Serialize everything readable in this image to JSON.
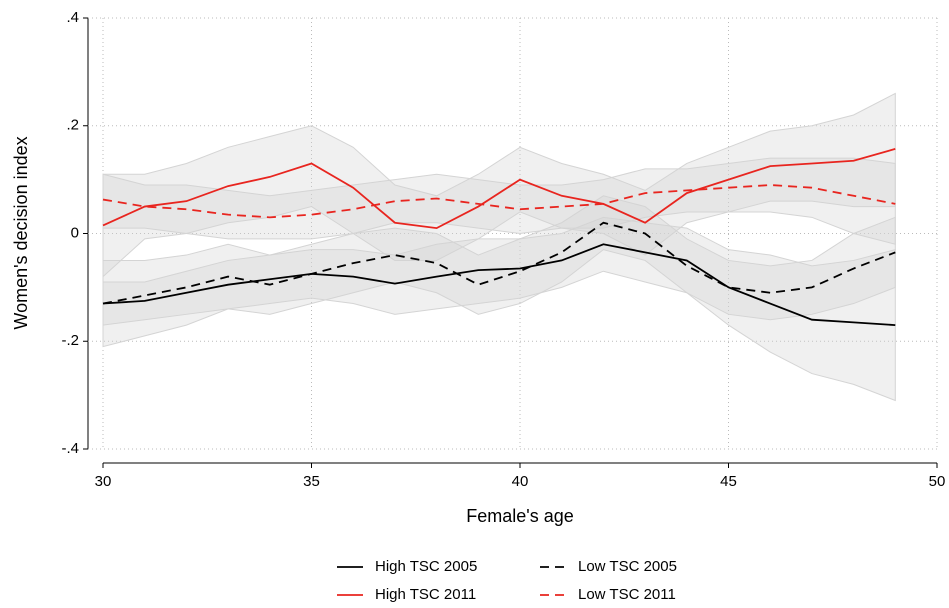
{
  "chart_data": {
    "type": "line",
    "x_label": "Female's age",
    "y_label": "Women's decision index",
    "x": [
      30,
      31,
      32,
      33,
      34,
      35,
      36,
      37,
      38,
      39,
      40,
      41,
      42,
      43,
      44,
      45,
      46,
      47,
      48,
      49
    ],
    "xlim": [
      30,
      50
    ],
    "xticks": [
      30,
      35,
      40,
      45,
      50
    ],
    "ylim": [
      -0.4,
      0.4
    ],
    "yticks": [
      {
        "value": -0.4,
        "label": "-.4"
      },
      {
        "value": -0.2,
        "label": "-.2"
      },
      0,
      {
        "value": 0.2,
        "label": ".2"
      },
      {
        "value": 0.4,
        "label": ".4"
      }
    ],
    "grid": true,
    "legend": "bottom",
    "band_color": "#d4d4d4",
    "series": [
      {
        "name": "High TSC 2005",
        "color": "#000000",
        "dash": false,
        "values": [
          -0.13,
          -0.125,
          -0.11,
          -0.095,
          -0.085,
          -0.075,
          -0.08,
          -0.093,
          -0.08,
          -0.068,
          -0.065,
          -0.05,
          -0.02,
          -0.035,
          -0.05,
          -0.1,
          -0.13,
          -0.16,
          -0.165,
          -0.17
        ],
        "lower": [
          -0.17,
          -0.16,
          -0.15,
          -0.14,
          -0.13,
          -0.12,
          -0.13,
          -0.15,
          -0.14,
          -0.13,
          -0.12,
          -0.1,
          -0.07,
          -0.09,
          -0.11,
          -0.17,
          -0.22,
          -0.26,
          -0.28,
          -0.31
        ],
        "upper": [
          -0.09,
          -0.09,
          -0.07,
          -0.05,
          -0.04,
          -0.03,
          -0.03,
          -0.04,
          -0.02,
          -0.01,
          -0.01,
          0,
          0.03,
          0.02,
          0.01,
          -0.03,
          -0.04,
          -0.06,
          -0.05,
          -0.03
        ]
      },
      {
        "name": "Low TSC 2005",
        "color": "#000000",
        "dash": true,
        "values": [
          -0.13,
          -0.115,
          -0.1,
          -0.08,
          -0.095,
          -0.075,
          -0.055,
          -0.04,
          -0.055,
          -0.095,
          -0.07,
          -0.035,
          0.02,
          0.0,
          -0.06,
          -0.1,
          -0.11,
          -0.1,
          -0.065,
          -0.035
        ],
        "lower": [
          -0.21,
          -0.19,
          -0.17,
          -0.14,
          -0.15,
          -0.13,
          -0.11,
          -0.09,
          -0.11,
          -0.15,
          -0.13,
          -0.09,
          -0.03,
          -0.05,
          -0.11,
          -0.15,
          -0.16,
          -0.15,
          -0.13,
          -0.1
        ],
        "upper": [
          -0.05,
          -0.05,
          -0.04,
          -0.02,
          -0.04,
          -0.02,
          0,
          0.01,
          0,
          -0.04,
          -0.01,
          0.02,
          0.07,
          0.05,
          -0.01,
          -0.05,
          -0.06,
          -0.05,
          0,
          0.03
        ]
      },
      {
        "name": "High TSC 2011",
        "color": "#e8251f",
        "dash": false,
        "values": [
          0.015,
          0.05,
          0.06,
          0.088,
          0.105,
          0.13,
          0.085,
          0.02,
          0.01,
          0.05,
          0.1,
          0.07,
          0.055,
          0.02,
          0.075,
          0.1,
          0.125,
          0.13,
          0.135,
          0.157
        ],
        "lower": [
          -0.08,
          -0.01,
          0,
          0.02,
          0.03,
          0.05,
          0,
          -0.05,
          -0.05,
          -0.01,
          0.04,
          0.01,
          0,
          -0.04,
          0.02,
          0.04,
          0.06,
          0.06,
          0.05,
          0.05
        ],
        "upper": [
          0.11,
          0.11,
          0.13,
          0.16,
          0.18,
          0.2,
          0.16,
          0.09,
          0.07,
          0.11,
          0.16,
          0.13,
          0.11,
          0.08,
          0.13,
          0.16,
          0.19,
          0.2,
          0.22,
          0.26
        ]
      },
      {
        "name": "Low TSC 2011",
        "color": "#e8251f",
        "dash": true,
        "values": [
          0.063,
          0.05,
          0.045,
          0.035,
          0.03,
          0.035,
          0.045,
          0.06,
          0.065,
          0.055,
          0.045,
          0.05,
          0.055,
          0.075,
          0.08,
          0.085,
          0.09,
          0.085,
          0.07,
          0.055
        ],
        "lower": [
          0.01,
          0.01,
          0,
          -0.01,
          -0.01,
          -0.01,
          0,
          0.02,
          0.02,
          0.01,
          0,
          0.01,
          0.01,
          0.03,
          0.04,
          0.04,
          0.04,
          0.03,
          0,
          -0.02
        ],
        "upper": [
          0.11,
          0.09,
          0.09,
          0.08,
          0.07,
          0.08,
          0.09,
          0.1,
          0.11,
          0.1,
          0.09,
          0.09,
          0.1,
          0.12,
          0.12,
          0.13,
          0.14,
          0.14,
          0.14,
          0.13
        ]
      }
    ]
  }
}
